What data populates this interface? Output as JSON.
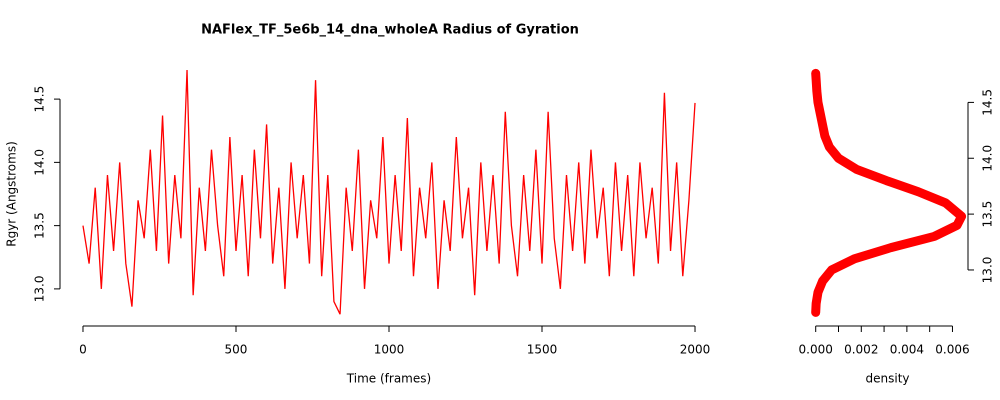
{
  "title": "NAFlex_TF_5e6b_14_dna_wholeA Radius of Gyration",
  "chart_data": [
    {
      "type": "line",
      "xlabel": "Time (frames)",
      "ylabel": "Rgyr (Angstroms)",
      "color": "#ff0000",
      "xlim": [
        -80,
        2080
      ],
      "ylim": [
        12.77,
        14.73
      ],
      "xticks": [
        0,
        500,
        1000,
        1500,
        2000
      ],
      "yticks": [
        {
          "value": 13,
          "label": "13.0"
        },
        {
          "value": 13.5,
          "label": "13.5"
        },
        {
          "value": 14,
          "label": "14.0"
        },
        {
          "value": 14.5,
          "label": "14.5"
        }
      ],
      "x": [
        0,
        20,
        40,
        60,
        80,
        100,
        120,
        140,
        160,
        180,
        200,
        220,
        240,
        260,
        280,
        300,
        320,
        340,
        360,
        380,
        400,
        420,
        440,
        460,
        480,
        500,
        520,
        540,
        560,
        580,
        600,
        620,
        640,
        660,
        680,
        700,
        720,
        740,
        760,
        780,
        800,
        820,
        840,
        860,
        880,
        900,
        920,
        940,
        960,
        980,
        1000,
        1020,
        1040,
        1060,
        1080,
        1100,
        1120,
        1140,
        1160,
        1180,
        1200,
        1220,
        1240,
        1260,
        1280,
        1300,
        1320,
        1340,
        1360,
        1380,
        1400,
        1420,
        1440,
        1460,
        1480,
        1500,
        1520,
        1540,
        1560,
        1580,
        1600,
        1620,
        1640,
        1660,
        1680,
        1700,
        1720,
        1740,
        1760,
        1780,
        1800,
        1820,
        1840,
        1860,
        1880,
        1900,
        1920,
        1940,
        1960,
        1980,
        2000
      ],
      "values": [
        13.5,
        13.2,
        13.8,
        13.0,
        13.9,
        13.3,
        14.0,
        13.2,
        12.86,
        13.7,
        13.4,
        14.1,
        13.3,
        14.37,
        13.2,
        13.9,
        13.4,
        14.73,
        12.95,
        13.8,
        13.3,
        14.1,
        13.5,
        13.1,
        14.2,
        13.3,
        13.9,
        13.1,
        14.1,
        13.4,
        14.3,
        13.2,
        13.8,
        13.0,
        14.0,
        13.4,
        13.9,
        13.2,
        14.65,
        13.1,
        13.9,
        12.9,
        12.8,
        13.8,
        13.3,
        14.1,
        13.0,
        13.7,
        13.4,
        14.2,
        13.2,
        13.9,
        13.3,
        14.35,
        13.1,
        13.8,
        13.4,
        14.0,
        13.0,
        13.7,
        13.3,
        14.2,
        13.4,
        13.8,
        12.95,
        14.0,
        13.3,
        13.9,
        13.2,
        14.4,
        13.5,
        13.1,
        13.9,
        13.3,
        14.1,
        13.2,
        14.4,
        13.4,
        13.0,
        13.9,
        13.3,
        14.0,
        13.2,
        14.1,
        13.4,
        13.8,
        13.1,
        14.0,
        13.3,
        13.9,
        13.1,
        14.0,
        13.4,
        13.8,
        13.2,
        14.55,
        13.3,
        14.0,
        13.1,
        13.7,
        14.47
      ]
    },
    {
      "type": "density",
      "xlabel": "density",
      "color": "#ff0000",
      "xlim": [
        -0.00025,
        0.00655
      ],
      "ylim": [
        12.57,
        14.79
      ],
      "xticks": [
        {
          "value": 0,
          "label": "0.000"
        },
        {
          "value": 0.002,
          "label": "0.002"
        },
        {
          "value": 0.004,
          "label": "0.004"
        },
        {
          "value": 0.006,
          "label": "0.006"
        }
      ],
      "xminor_ticks": [
        0.001,
        0.003,
        0.005
      ],
      "yticks": [
        {
          "value": 13,
          "label": "13.0"
        },
        {
          "value": 13.5,
          "label": "13.5"
        },
        {
          "value": 14,
          "label": "14.0"
        },
        {
          "value": 14.5,
          "label": "14.5"
        }
      ],
      "y": [
        12.62,
        12.7,
        12.8,
        12.9,
        13.0,
        13.1,
        13.2,
        13.3,
        13.4,
        13.48,
        13.6,
        13.7,
        13.8,
        13.9,
        14.0,
        14.1,
        14.2,
        14.3,
        14.4,
        14.5,
        14.6,
        14.7,
        14.76
      ],
      "values": [
        0,
        2e-05,
        0.0001,
        0.0003,
        0.0007,
        0.0017,
        0.0033,
        0.0052,
        0.0062,
        0.0064,
        0.0057,
        0.0045,
        0.0031,
        0.0018,
        0.001,
        0.0006,
        0.0004,
        0.0003,
        0.0002,
        0.0001,
        5e-05,
        2e-05,
        0
      ]
    }
  ]
}
